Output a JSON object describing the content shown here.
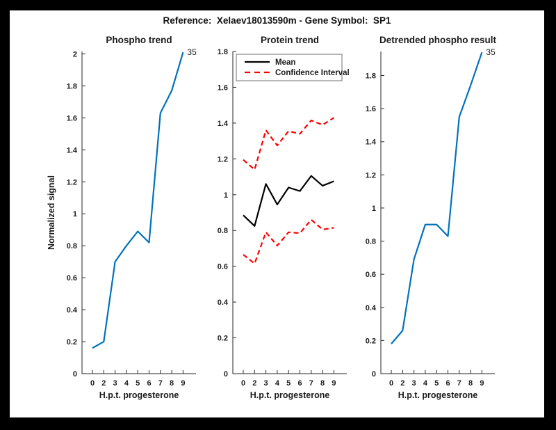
{
  "figure": {
    "title": "Reference:  Xelaev18013590m - Gene Symbol:  SP1"
  },
  "colors": {
    "blue": "#0072BD",
    "red": "#FF0000",
    "black": "#000000",
    "axis": "#262626",
    "text": "#1a1a1a",
    "frame": "#000000",
    "background": "#FFFFFF"
  },
  "chart_data": [
    {
      "type": "line",
      "title": "Phospho trend",
      "xlabel": "H.p.t. progesterone",
      "ylabel": "Normalized signal",
      "x_tick_labels": [
        "0",
        "2",
        "3",
        "4",
        "5",
        "6",
        "7",
        "8",
        "9"
      ],
      "ylim": [
        0,
        2.015
      ],
      "y_ticks": [
        0,
        0.2,
        0.4,
        0.6,
        0.8,
        1,
        1.2,
        1.4,
        1.6,
        1.8,
        2
      ],
      "y_tick_labels": [
        "0",
        "0.2",
        "0.4",
        "0.6",
        "0.8",
        "1",
        "1.2",
        "1.4",
        "1.6",
        "1.8",
        "2"
      ],
      "annotation": "35",
      "grid": false,
      "series": [
        {
          "name": "phospho-signal",
          "color": "#0072BD",
          "style": "solid",
          "values": [
            0.16,
            0.2,
            0.7,
            0.8,
            0.89,
            0.82,
            1.63,
            1.77,
            2.01
          ]
        }
      ]
    },
    {
      "type": "line",
      "title": "Protein trend",
      "xlabel": "H.p.t. progesterone",
      "x_tick_labels": [
        "0",
        "2",
        "3",
        "4",
        "5",
        "6",
        "7",
        "8",
        "9"
      ],
      "ylim": [
        0,
        1.8
      ],
      "y_ticks": [
        0,
        0.2,
        0.4,
        0.6,
        0.8,
        1,
        1.2,
        1.4,
        1.6,
        1.8
      ],
      "y_tick_labels": [
        "0",
        "0.2",
        "0.4",
        "0.6",
        "0.8",
        "1",
        "1.2",
        "1.4",
        "1.6",
        "1.8"
      ],
      "legend": [
        "Mean",
        "Confidence Interval"
      ],
      "legend_position": "top-left",
      "grid": false,
      "series": [
        {
          "name": "mean",
          "color": "#000000",
          "style": "solid",
          "values": [
            0.885,
            0.825,
            1.06,
            0.945,
            1.04,
            1.02,
            1.105,
            1.05,
            1.075
          ]
        },
        {
          "name": "ci-upper",
          "color": "#FF0000",
          "style": "dashed",
          "values": [
            1.195,
            1.14,
            1.36,
            1.275,
            1.355,
            1.34,
            1.415,
            1.39,
            1.43
          ]
        },
        {
          "name": "ci-lower",
          "color": "#FF0000",
          "style": "dashed",
          "values": [
            0.665,
            0.615,
            0.79,
            0.715,
            0.79,
            0.785,
            0.86,
            0.805,
            0.815
          ]
        }
      ]
    },
    {
      "type": "line",
      "title": "Detrended phospho result",
      "xlabel": "H.p.t. progesterone",
      "x_tick_labels": [
        "0",
        "2",
        "3",
        "4",
        "5",
        "6",
        "7",
        "8",
        "9"
      ],
      "ylim": [
        0,
        1.945
      ],
      "y_ticks": [
        0,
        0.2,
        0.4,
        0.6,
        0.8,
        1,
        1.2,
        1.4,
        1.6,
        1.8
      ],
      "y_tick_labels": [
        "0",
        "0.2",
        "0.4",
        "0.6",
        "0.8",
        "1",
        "1.2",
        "1.4",
        "1.6",
        "1.8"
      ],
      "annotation": "35",
      "grid": false,
      "series": [
        {
          "name": "detrended-phospho",
          "color": "#0072BD",
          "style": "solid",
          "values": [
            0.18,
            0.26,
            0.69,
            0.9,
            0.9,
            0.83,
            1.55,
            1.74,
            1.94
          ]
        }
      ]
    }
  ]
}
